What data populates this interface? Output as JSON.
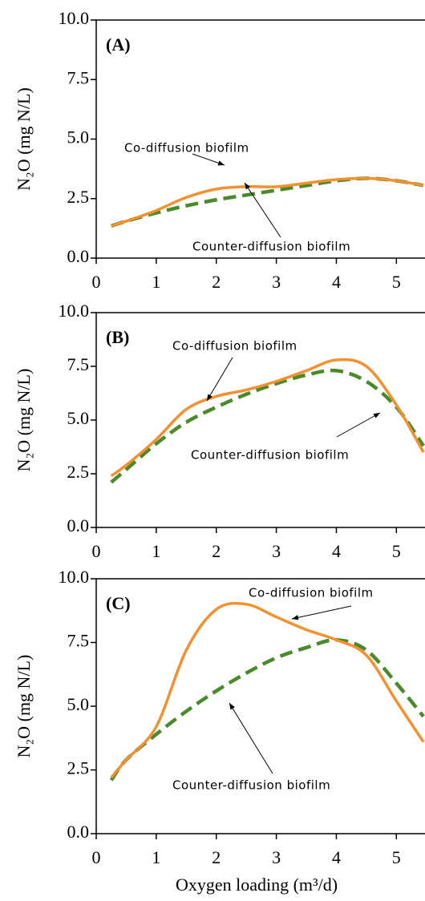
{
  "chart_data": [
    {
      "type": "line",
      "panel_label": "(A)",
      "y_label": "N₂O (mg N/L)",
      "xlim": [
        0,
        5.45
      ],
      "xticks": [
        0,
        1,
        2,
        3,
        4,
        5
      ],
      "ylim": [
        0,
        10
      ],
      "yticks": [
        {
          "value": 0,
          "label": "0.0"
        },
        2.5,
        {
          "value": 5,
          "label": "5.0"
        },
        7.5,
        {
          "value": 10,
          "label": "10.0"
        }
      ],
      "x": [
        0.25,
        0.5,
        1,
        1.5,
        2,
        2.5,
        3,
        3.5,
        4,
        4.5,
        5,
        5.45
      ],
      "series": [
        {
          "name": "Co-diffusion biofilm",
          "color": "#f39030",
          "values": [
            1.35,
            1.55,
            2.0,
            2.55,
            2.9,
            3.0,
            3.0,
            3.15,
            3.3,
            3.35,
            3.25,
            3.05
          ]
        },
        {
          "name": "Counter-diffusion biofilm",
          "color": "#4a8a2a",
          "dashed": true,
          "values": [
            1.35,
            1.55,
            1.9,
            2.2,
            2.45,
            2.65,
            2.85,
            3.05,
            3.25,
            3.35,
            3.25,
            3.05
          ]
        }
      ]
    },
    {
      "type": "line",
      "panel_label": "(B)",
      "y_label": "N₂O (mg N/L)",
      "xlim": [
        0,
        5.45
      ],
      "xticks": [
        0,
        1,
        2,
        3,
        4,
        5
      ],
      "ylim": [
        0,
        10
      ],
      "yticks": [
        {
          "value": 0,
          "label": "0.0"
        },
        2.5,
        {
          "value": 5,
          "label": "5.0"
        },
        7.5,
        {
          "value": 10,
          "label": "10.0"
        }
      ],
      "x": [
        0.25,
        0.5,
        1,
        1.5,
        2,
        2.5,
        3,
        3.5,
        4,
        4.5,
        5,
        5.45
      ],
      "series": [
        {
          "name": "Co-diffusion biofilm",
          "color": "#f39030",
          "values": [
            2.4,
            2.9,
            4.1,
            5.5,
            6.1,
            6.4,
            6.8,
            7.3,
            7.8,
            7.5,
            5.7,
            3.5
          ]
        },
        {
          "name": "Counter-diffusion biofilm",
          "color": "#4a8a2a",
          "dashed": true,
          "values": [
            2.1,
            2.7,
            3.9,
            4.9,
            5.6,
            6.2,
            6.7,
            7.1,
            7.3,
            6.8,
            5.6,
            3.8
          ]
        }
      ]
    },
    {
      "type": "line",
      "panel_label": "(C)",
      "y_label": "N₂O (mg N/L)",
      "x_label": "Oxygen loading (m³/d)",
      "xlim": [
        0,
        5.45
      ],
      "xticks": [
        0,
        1,
        2,
        3,
        4,
        5
      ],
      "ylim": [
        0,
        10
      ],
      "yticks": [
        {
          "value": 0,
          "label": "0.0"
        },
        2.5,
        {
          "value": 5,
          "label": "5.0"
        },
        7.5,
        {
          "value": 10,
          "label": "10.0"
        }
      ],
      "x": [
        0.25,
        0.5,
        1,
        1.5,
        2,
        2.5,
        3,
        3.5,
        4,
        4.5,
        5,
        5.45
      ],
      "series": [
        {
          "name": "Co-diffusion biofilm",
          "color": "#f39030",
          "values": [
            2.2,
            2.9,
            4.2,
            7.2,
            8.8,
            9.0,
            8.5,
            8.0,
            7.6,
            7.0,
            5.2,
            3.6
          ]
        },
        {
          "name": "Counter-diffusion biofilm",
          "color": "#4a8a2a",
          "dashed": true,
          "values": [
            2.1,
            2.9,
            3.9,
            4.8,
            5.6,
            6.3,
            6.9,
            7.3,
            7.6,
            7.2,
            5.9,
            4.6
          ]
        }
      ]
    }
  ]
}
